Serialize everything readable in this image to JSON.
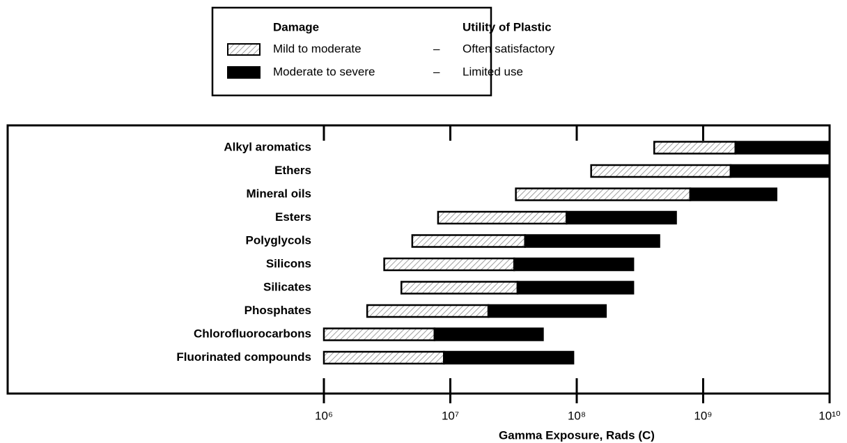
{
  "chart_data": {
    "type": "range_bar",
    "xlabel": "Gamma Exposure, Rads (C)",
    "xscale": "log",
    "xlim": [
      1000000,
      10000000000
    ],
    "xticks": [
      {
        "value": 1000000,
        "label": "10⁶"
      },
      {
        "value": 10000000,
        "label": "10⁷"
      },
      {
        "value": 100000000,
        "label": "10⁸"
      },
      {
        "value": 1000000000,
        "label": "10⁹"
      },
      {
        "value": 10000000000,
        "label": "10¹⁰"
      }
    ],
    "legend": {
      "position": "top",
      "headers": [
        "Damage",
        "Utility of Plastic"
      ],
      "separator": "–"
    },
    "categories": [
      "Alkyl aromatics",
      "Ethers",
      "Mineral oils",
      "Esters",
      "Polyglycols",
      "Silicons",
      "Silicates",
      "Phosphates",
      "Chlorofluorocarbons",
      "Fluorinated compounds"
    ],
    "series": [
      {
        "name": "Mild to moderate",
        "utility": "Often satisfactory",
        "color": "#ffffff",
        "hatch": true,
        "start": [
          410000000,
          130000000,
          33000000,
          8000000,
          5000000,
          3000000,
          4100000,
          2200000,
          1000000,
          1000000
        ],
        "end": [
          1800000000,
          1650000000,
          790000000,
          83000000,
          39000000,
          32000000,
          34000000,
          20000000,
          7500000,
          8900000
        ]
      },
      {
        "name": "Moderate to severe",
        "utility": "Limited use",
        "color": "#000000",
        "hatch": false,
        "start": [
          1800000000,
          1650000000,
          790000000,
          83000000,
          39000000,
          32000000,
          34000000,
          20000000,
          7500000,
          8900000
        ],
        "end": [
          10000000000,
          10000000000,
          3800000000,
          610000000,
          450000000,
          280000000,
          280000000,
          170000000,
          54000000,
          94000000
        ]
      }
    ]
  }
}
